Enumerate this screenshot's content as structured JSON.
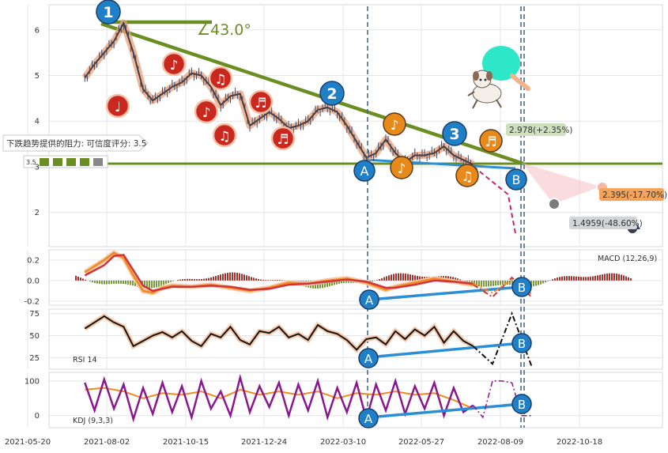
{
  "colors": {
    "trend": "#6b8e23",
    "circle_blue": "#1f7fc7",
    "circle_red": "#c8281e",
    "circle_orange": "#e88a1a",
    "macd_orange": "#f08a1e",
    "macd_red": "#d0343a",
    "divergence": "#2b8fd6",
    "kdj_purple": "#8a178f",
    "grid": "#e4e6ea"
  },
  "angle_label": "∠43.0°",
  "resistance": {
    "label": "下跌趋势提供的阻力: 可信度评分: 3.5",
    "score_label": "3.5"
  },
  "markers": {
    "wave_one": "1",
    "wave_two": "2",
    "wave_three": "3",
    "div_a": "A",
    "div_b": "B"
  },
  "chart_data": [
    {
      "type": "line",
      "panel": "price",
      "x_tick_labels": [
        "2021-05-20",
        "2021-08-02",
        "2021-10-15",
        "2021-12-24",
        "2022-03-10",
        "2022-05-27",
        "2022-08-09",
        "2022-10-18"
      ],
      "y_ticks": [
        2,
        3,
        4,
        5,
        6
      ],
      "ylim": [
        1.25,
        6.55
      ],
      "series": [
        {
          "values": [
            [
              1,
              4.95
            ],
            [
              2,
              5.25
            ],
            [
              3,
              5.5
            ],
            [
              4,
              5.75
            ],
            [
              5,
              6.15
            ],
            [
              6,
              5.5
            ],
            [
              7,
              4.7
            ],
            [
              8,
              4.45
            ],
            [
              9,
              4.6
            ],
            [
              10,
              4.75
            ],
            [
              11,
              4.85
            ],
            [
              12,
              5.05
            ],
            [
              13,
              5.0
            ],
            [
              14,
              4.75
            ],
            [
              15,
              4.35
            ],
            [
              16,
              4.55
            ],
            [
              17,
              4.6
            ],
            [
              18,
              3.9
            ],
            [
              19,
              4.05
            ],
            [
              20,
              4.2
            ],
            [
              21,
              4.05
            ],
            [
              22,
              3.85
            ],
            [
              23,
              3.9
            ],
            [
              24,
              4.0
            ],
            [
              25,
              4.25
            ],
            [
              26,
              4.3
            ],
            [
              27,
              4.2
            ],
            [
              28,
              3.9
            ],
            [
              29,
              3.55
            ],
            [
              30,
              3.2
            ],
            [
              31,
              3.3
            ],
            [
              32,
              3.6
            ],
            [
              33,
              3.3
            ],
            [
              34,
              3.1
            ],
            [
              35,
              3.25
            ],
            [
              36,
              3.25
            ],
            [
              37,
              3.3
            ],
            [
              38,
              3.45
            ],
            [
              39,
              3.25
            ],
            [
              40,
              3.15
            ],
            [
              41,
              3.05
            ]
          ]
        }
      ],
      "forecast": [
        [
          41.2,
          2.978
        ],
        [
          44.6,
          2.395
        ],
        [
          45.4,
          1.4959
        ]
      ],
      "annotations": [
        "2.978(+2.35%)",
        "2.395(-17.70%)",
        "1.4959(-48.60%)"
      ]
    },
    {
      "type": "line",
      "panel": "macd",
      "title": "MACD (12,26,9)",
      "y_ticks": [
        0.2,
        0.0,
        -0.2
      ],
      "ylim": [
        -0.24,
        0.3
      ],
      "series": [
        {
          "values": [
            [
              1,
              0.08
            ],
            [
              3,
              0.2
            ],
            [
              4,
              0.27
            ],
            [
              5,
              0.22
            ],
            [
              6,
              0.05
            ],
            [
              7,
              -0.1
            ],
            [
              8,
              -0.12
            ],
            [
              9,
              -0.07
            ],
            [
              10,
              -0.05
            ],
            [
              12,
              -0.06
            ],
            [
              14,
              -0.04
            ],
            [
              16,
              -0.07
            ],
            [
              18,
              -0.1
            ],
            [
              20,
              -0.07
            ],
            [
              22,
              -0.02
            ],
            [
              24,
              -0.03
            ],
            [
              26,
              0.0
            ],
            [
              28,
              0.02
            ],
            [
              30,
              -0.02
            ],
            [
              32,
              -0.09
            ],
            [
              33,
              -0.06
            ],
            [
              35,
              -0.02
            ],
            [
              37,
              0.02
            ],
            [
              39,
              -0.01
            ],
            [
              41,
              -0.04
            ],
            [
              43,
              -0.16
            ],
            [
              45,
              0.03
            ],
            [
              47,
              -0.16
            ]
          ]
        },
        {
          "values": [
            [
              1,
              0.05
            ],
            [
              3,
              0.15
            ],
            [
              4,
              0.24
            ],
            [
              5,
              0.25
            ],
            [
              6,
              0.1
            ],
            [
              7,
              -0.05
            ],
            [
              8,
              -0.1
            ],
            [
              9,
              -0.08
            ],
            [
              10,
              -0.06
            ],
            [
              12,
              -0.06
            ],
            [
              14,
              -0.05
            ],
            [
              16,
              -0.06
            ],
            [
              18,
              -0.09
            ],
            [
              20,
              -0.08
            ],
            [
              22,
              -0.04
            ],
            [
              24,
              -0.03
            ],
            [
              26,
              -0.01
            ],
            [
              28,
              0.01
            ],
            [
              30,
              -0.01
            ],
            [
              32,
              -0.07
            ],
            [
              33,
              -0.07
            ],
            [
              35,
              -0.04
            ],
            [
              37,
              0.0
            ],
            [
              39,
              -0.01
            ],
            [
              41,
              -0.03
            ],
            [
              43,
              -0.12
            ],
            [
              45,
              0.01
            ],
            [
              47,
              -0.13
            ]
          ]
        }
      ]
    },
    {
      "type": "line",
      "panel": "rsi",
      "title": "RSI 14",
      "y_ticks": [
        75,
        50,
        25
      ],
      "ylim": [
        12,
        80
      ],
      "series": [
        {
          "values": [
            [
              1,
              58
            ],
            [
              2,
              65
            ],
            [
              3,
              72
            ],
            [
              4,
              65
            ],
            [
              5,
              60
            ],
            [
              6,
              38
            ],
            [
              7,
              44
            ],
            [
              8,
              50
            ],
            [
              9,
              54
            ],
            [
              10,
              48
            ],
            [
              11,
              55
            ],
            [
              12,
              44
            ],
            [
              13,
              38
            ],
            [
              14,
              52
            ],
            [
              15,
              48
            ],
            [
              16,
              60
            ],
            [
              17,
              45
            ],
            [
              18,
              40
            ],
            [
              19,
              55
            ],
            [
              20,
              53
            ],
            [
              21,
              60
            ],
            [
              22,
              48
            ],
            [
              23,
              52
            ],
            [
              24,
              45
            ],
            [
              25,
              62
            ],
            [
              26,
              55
            ],
            [
              27,
              52
            ],
            [
              28,
              45
            ],
            [
              29,
              34
            ],
            [
              30,
              46
            ],
            [
              31,
              48
            ],
            [
              32,
              40
            ],
            [
              33,
              55
            ],
            [
              34,
              46
            ],
            [
              35,
              57
            ],
            [
              36,
              50
            ],
            [
              37,
              60
            ],
            [
              38,
              42
            ],
            [
              39,
              55
            ],
            [
              40,
              44
            ],
            [
              41,
              38
            ],
            [
              43,
              18
            ],
            [
              45,
              75
            ],
            [
              47,
              16
            ]
          ]
        }
      ]
    },
    {
      "type": "line",
      "panel": "kdj",
      "title": "KDJ (9,3,3)",
      "y_ticks": [
        100,
        0
      ],
      "ylim": [
        -35,
        125
      ],
      "series": [
        {
          "values": [
            [
              1,
              95
            ],
            [
              2,
              15
            ],
            [
              3,
              105
            ],
            [
              4,
              20
            ],
            [
              5,
              90
            ],
            [
              6,
              -10
            ],
            [
              7,
              80
            ],
            [
              8,
              5
            ],
            [
              9,
              95
            ],
            [
              10,
              10
            ],
            [
              11,
              85
            ],
            [
              12,
              -5
            ],
            [
              13,
              100
            ],
            [
              14,
              20
            ],
            [
              15,
              70
            ],
            [
              16,
              0
            ],
            [
              17,
              110
            ],
            [
              18,
              10
            ],
            [
              19,
              85
            ],
            [
              20,
              25
            ],
            [
              21,
              95
            ],
            [
              22,
              0
            ],
            [
              23,
              90
            ],
            [
              24,
              15
            ],
            [
              25,
              100
            ],
            [
              26,
              -5
            ],
            [
              27,
              80
            ],
            [
              28,
              10
            ],
            [
              29,
              95
            ],
            [
              30,
              -10
            ],
            [
              31,
              90
            ],
            [
              32,
              15
            ],
            [
              33,
              100
            ],
            [
              34,
              5
            ],
            [
              35,
              85
            ],
            [
              36,
              20
            ],
            [
              37,
              95
            ],
            [
              38,
              0
            ],
            [
              39,
              80
            ],
            [
              40,
              10
            ],
            [
              41,
              30
            ],
            [
              42,
              -5
            ],
            [
              43,
              100
            ],
            [
              44,
              100
            ],
            [
              45,
              95
            ],
            [
              46,
              0
            ],
            [
              47,
              0
            ]
          ]
        },
        {
          "values": [
            [
              1,
              75
            ],
            [
              3,
              80
            ],
            [
              5,
              70
            ],
            [
              7,
              50
            ],
            [
              9,
              65
            ],
            [
              11,
              60
            ],
            [
              13,
              70
            ],
            [
              15,
              50
            ],
            [
              17,
              75
            ],
            [
              19,
              60
            ],
            [
              21,
              70
            ],
            [
              23,
              60
            ],
            [
              25,
              70
            ],
            [
              27,
              50
            ],
            [
              29,
              65
            ],
            [
              31,
              60
            ],
            [
              33,
              70
            ],
            [
              35,
              60
            ],
            [
              37,
              65
            ],
            [
              39,
              45
            ],
            [
              41,
              20
            ],
            [
              42,
              5
            ],
            [
              43,
              90
            ],
            [
              45,
              90
            ],
            [
              46,
              10
            ],
            [
              47,
              2
            ]
          ]
        }
      ]
    }
  ]
}
